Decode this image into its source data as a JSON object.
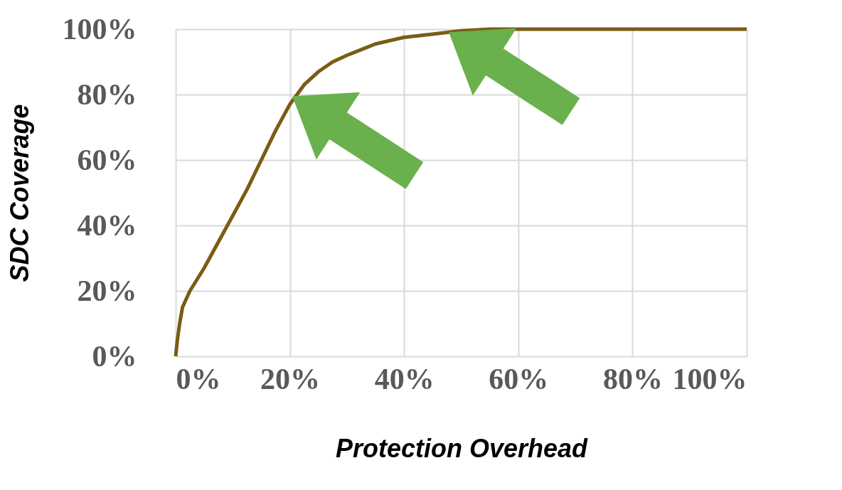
{
  "chart_data": {
    "type": "line",
    "xlabel": "Protection Overhead",
    "ylabel": "SDC Coverage",
    "x": [
      0,
      0.3,
      0.7,
      1.2,
      2.5,
      5,
      7.5,
      10,
      12.5,
      15,
      17.5,
      20,
      22.5,
      25,
      27.5,
      30,
      35,
      40,
      45,
      50,
      55,
      60,
      70,
      80,
      90,
      100
    ],
    "series": [
      {
        "color": "#7a5c14",
        "values": [
          0,
          5,
          10,
          15,
          20,
          27,
          35,
          43,
          51,
          60,
          69,
          77,
          83,
          87,
          90,
          92,
          95.5,
          97.5,
          98.5,
          99.5,
          100,
          100,
          100,
          100,
          100,
          100
        ]
      }
    ],
    "xlim": [
      0,
      100
    ],
    "ylim": [
      0,
      100
    ],
    "xticks": [
      {
        "value": 0,
        "label": "0%"
      },
      {
        "value": 20,
        "label": "20%"
      },
      {
        "value": 40,
        "label": "40%"
      },
      {
        "value": 60,
        "label": "60%"
      },
      {
        "value": 80,
        "label": "80%"
      },
      {
        "value": 100,
        "label": "100%"
      }
    ],
    "yticks": [
      {
        "value": 0,
        "label": "0%"
      },
      {
        "value": 20,
        "label": "20%"
      },
      {
        "value": 40,
        "label": "40%"
      },
      {
        "value": 60,
        "label": "60%"
      },
      {
        "value": 80,
        "label": "80%"
      },
      {
        "value": 100,
        "label": "100%"
      }
    ],
    "grid": true,
    "marker": "none",
    "line_style": "solid"
  }
}
